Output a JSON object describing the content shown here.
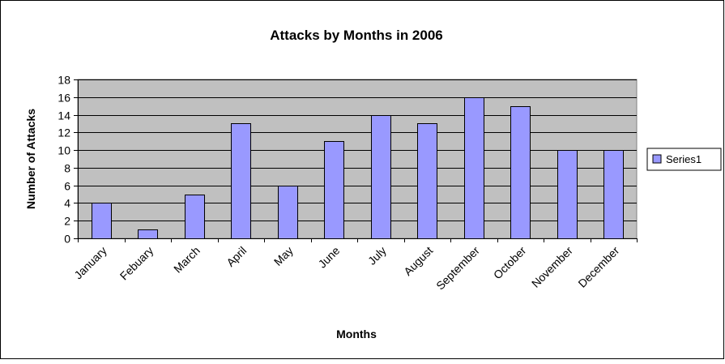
{
  "chart_data": {
    "type": "bar",
    "title": "Attacks by Months in 2006",
    "xlabel": "Months",
    "ylabel": "Number of Attacks",
    "categories": [
      "January",
      "Febuary",
      "March",
      "April",
      "May",
      "June",
      "July",
      "August",
      "September",
      "October",
      "November",
      "December"
    ],
    "series": [
      {
        "name": "Series1",
        "values": [
          4,
          1,
          5,
          13,
          6,
          11,
          14,
          13,
          16,
          15,
          10,
          10
        ]
      }
    ],
    "ylim": [
      0,
      18
    ],
    "yticks": [
      "0",
      "2",
      "4",
      "6",
      "8",
      "10",
      "12",
      "14",
      "16",
      "18"
    ],
    "grid": true,
    "legend": "right",
    "colors": {
      "bar_fill": "#9999FF",
      "plot_bg": "#C0C0C0",
      "grid": "#000000",
      "frame": "#000000"
    }
  }
}
